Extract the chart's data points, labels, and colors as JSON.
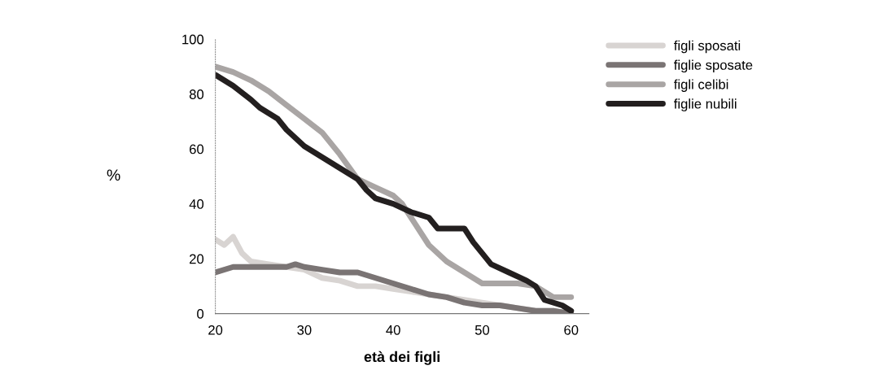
{
  "chart_data": {
    "type": "line",
    "xlabel": "età dei figli",
    "ylabel": "%",
    "xlim": [
      20,
      62
    ],
    "ylim": [
      0,
      100
    ],
    "xticks": [
      20,
      30,
      40,
      50,
      60
    ],
    "yticks": [
      0,
      20,
      40,
      60,
      80,
      100
    ],
    "grid": false,
    "legend": "top right",
    "series": [
      {
        "name": "figli sposati",
        "color": "#d8d4d2",
        "x": [
          20,
          21,
          22,
          23,
          24,
          26,
          28,
          30,
          32,
          34,
          36,
          38,
          40,
          42,
          44,
          46,
          48,
          50,
          52,
          54,
          56,
          58,
          60
        ],
        "values": [
          27,
          25,
          28,
          22,
          19,
          18,
          17,
          16,
          13,
          12,
          10,
          10,
          9,
          8,
          7,
          6,
          5,
          4,
          3,
          2,
          1,
          1,
          0
        ]
      },
      {
        "name": "figlie sposate",
        "color": "#7a7474",
        "x": [
          20,
          22,
          24,
          26,
          28,
          29,
          30,
          32,
          34,
          36,
          38,
          40,
          42,
          44,
          46,
          48,
          50,
          52,
          54,
          56,
          58,
          60
        ],
        "values": [
          15,
          17,
          17,
          17,
          17,
          18,
          17,
          16,
          15,
          15,
          13,
          11,
          9,
          7,
          6,
          4,
          3,
          3,
          2,
          1,
          1,
          0
        ]
      },
      {
        "name": "figli celibi",
        "color": "#a9a5a4",
        "x": [
          20,
          22,
          24,
          26,
          28,
          30,
          32,
          34,
          36,
          38,
          40,
          41,
          42,
          44,
          46,
          48,
          50,
          52,
          54,
          56,
          58,
          60
        ],
        "values": [
          90,
          88,
          85,
          81,
          76,
          71,
          66,
          58,
          49,
          46,
          43,
          40,
          35,
          25,
          19,
          15,
          11,
          11,
          11,
          10,
          6,
          6
        ]
      },
      {
        "name": "figlie nubili",
        "color": "#231f1f",
        "x": [
          20,
          22,
          24,
          25,
          27,
          28,
          30,
          32,
          34,
          36,
          37,
          38,
          40,
          42,
          44,
          45,
          48,
          49,
          51,
          53,
          55,
          56,
          57,
          59,
          60
        ],
        "values": [
          87,
          83,
          78,
          75,
          71,
          67,
          61,
          57,
          53,
          49,
          45,
          42,
          40,
          37,
          35,
          31,
          31,
          26,
          18,
          15,
          12,
          10,
          5,
          3,
          1
        ]
      }
    ]
  }
}
